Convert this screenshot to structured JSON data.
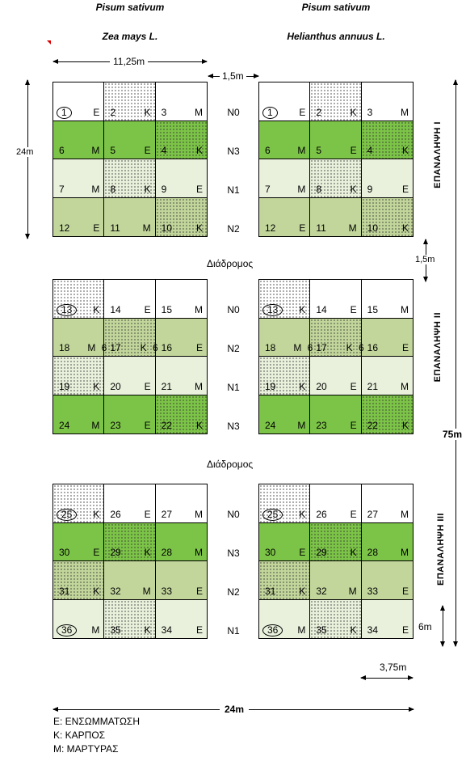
{
  "headers": {
    "left_crop1": "Pisum sativum",
    "left_crop2": "Zea mays L.",
    "right_crop1": "Pisum sativum",
    "right_crop2": "Helianthus annuus L."
  },
  "dimensions": {
    "plot_width": "11,25m",
    "gap": "1,5m",
    "block_height": "24m",
    "path_width": "1,5m",
    "total_height": "75m",
    "cell_height": "6m",
    "cell_width": "3,75m",
    "total_width": "24m"
  },
  "path_label": "Διάδρομος",
  "replications": [
    "ΕΠΑΝΑΛΗΨΗ  I",
    "ΕΠΑΝΑΛΗΨΗ  II",
    "ΕΠΑΝΑΛΗΨΗ  III"
  ],
  "nitrogen_levels": [
    [
      "N0",
      "N3",
      "N1",
      "N2"
    ],
    [
      "N0",
      "N2",
      "N1",
      "N3"
    ],
    [
      "N0",
      "N3",
      "N2",
      "N1"
    ]
  ],
  "blocks": [
    [
      {
        "num": "1",
        "t": "Ε",
        "bg": "white",
        "dots": false,
        "circ": true
      },
      {
        "num": "2",
        "t": "Κ",
        "bg": "white",
        "dots": true
      },
      {
        "num": "3",
        "t": "Μ",
        "bg": "white",
        "dots": false
      },
      {
        "num": "6",
        "t": "Μ",
        "bg": "dark",
        "dots": false
      },
      {
        "num": "5",
        "t": "Ε",
        "bg": "dark",
        "dots": false
      },
      {
        "num": "4",
        "t": "Κ",
        "bg": "dark",
        "dots": true
      },
      {
        "num": "7",
        "t": "Μ",
        "bg": "light",
        "dots": false
      },
      {
        "num": "8",
        "t": "Κ",
        "bg": "light",
        "dots": true
      },
      {
        "num": "9",
        "t": "Ε",
        "bg": "light",
        "dots": false
      },
      {
        "num": "12",
        "t": "Ε",
        "bg": "mid",
        "dots": false
      },
      {
        "num": "11",
        "t": "Μ",
        "bg": "mid",
        "dots": false
      },
      {
        "num": "10",
        "t": "Κ",
        "bg": "mid",
        "dots": true
      }
    ],
    [
      {
        "num": "13",
        "t": "Κ",
        "bg": "white",
        "dots": true,
        "circ": true
      },
      {
        "num": "14",
        "t": "Ε",
        "bg": "white",
        "dots": false
      },
      {
        "num": "15",
        "t": "Μ",
        "bg": "white",
        "dots": false
      },
      {
        "num": "18",
        "t": "Μ",
        "bg": "mid",
        "dots": false,
        "six": "6"
      },
      {
        "num": "17",
        "t": "Κ",
        "bg": "mid",
        "dots": true,
        "six": "6"
      },
      {
        "num": "16",
        "t": "Ε",
        "bg": "mid",
        "dots": false
      },
      {
        "num": "19",
        "t": "Κ",
        "bg": "light",
        "dots": true
      },
      {
        "num": "20",
        "t": "Ε",
        "bg": "light",
        "dots": false
      },
      {
        "num": "21",
        "t": "Μ",
        "bg": "light",
        "dots": false
      },
      {
        "num": "24",
        "t": "Μ",
        "bg": "dark",
        "dots": false
      },
      {
        "num": "23",
        "t": "Ε",
        "bg": "dark",
        "dots": false
      },
      {
        "num": "22",
        "t": "Κ",
        "bg": "dark",
        "dots": true
      }
    ],
    [
      {
        "num": "25",
        "t": "Κ",
        "bg": "white",
        "dots": true,
        "circ": true
      },
      {
        "num": "26",
        "t": "Ε",
        "bg": "white",
        "dots": false
      },
      {
        "num": "27",
        "t": "Μ",
        "bg": "white",
        "dots": false
      },
      {
        "num": "30",
        "t": "Ε",
        "bg": "dark",
        "dots": false
      },
      {
        "num": "29",
        "t": "Κ",
        "bg": "dark",
        "dots": true
      },
      {
        "num": "28",
        "t": "Μ",
        "bg": "dark",
        "dots": false
      },
      {
        "num": "31",
        "t": "Κ",
        "bg": "mid",
        "dots": true
      },
      {
        "num": "32",
        "t": "Μ",
        "bg": "mid",
        "dots": false
      },
      {
        "num": "33",
        "t": "Ε",
        "bg": "mid",
        "dots": false
      },
      {
        "num": "36",
        "t": "Μ",
        "bg": "light",
        "dots": false,
        "circ": true
      },
      {
        "num": "35",
        "t": "Κ",
        "bg": "light",
        "dots": true
      },
      {
        "num": "34",
        "t": "Ε",
        "bg": "light",
        "dots": false
      }
    ]
  ],
  "legend": {
    "e": "Ε: ΕΝΣΩΜΜΑΤΩΣΗ",
    "k": "Κ: ΚΑΡΠΟΣ",
    "m": "Μ: ΜΑΡΤΥΡΑΣ"
  },
  "colors": {
    "dark": "#7cc447",
    "mid": "#c2d69b",
    "light": "#e9f1dc",
    "white": "#ffffff"
  }
}
